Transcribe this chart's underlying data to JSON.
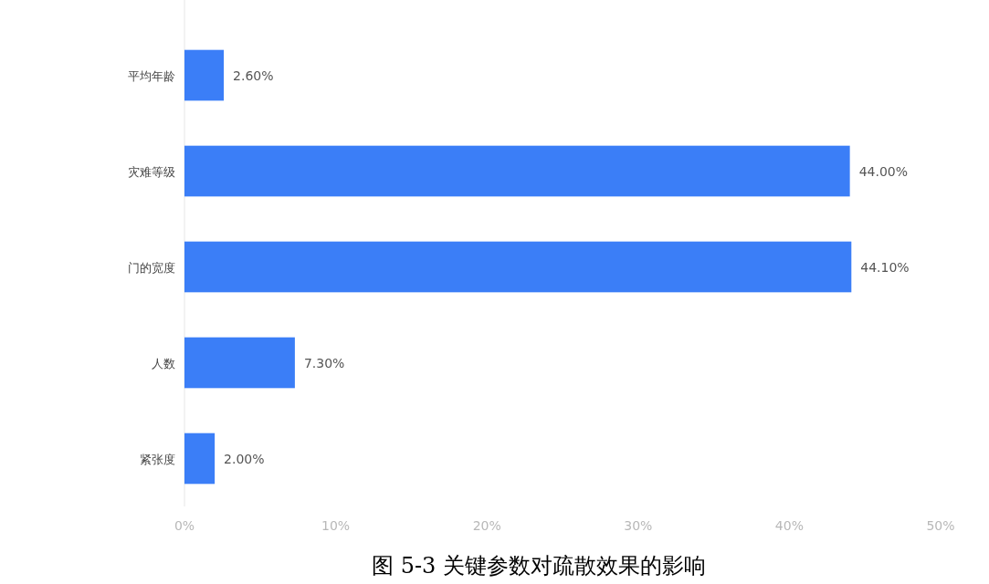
{
  "chart_data": {
    "type": "bar",
    "orientation": "horizontal",
    "title": "图 5-3  关键参数对疏散效果的影响",
    "categories": [
      "平均年龄",
      "灾难等级",
      "门的宽度",
      "人数",
      "紧张度"
    ],
    "values": [
      2.6,
      44.0,
      44.1,
      7.3,
      2.0
    ],
    "value_labels": [
      "2.60%",
      "44.00%",
      "44.10%",
      "7.30%",
      "2.00%"
    ],
    "color": "#3b7ef7",
    "xlim": [
      0,
      50
    ],
    "xticks": [
      {
        "value": 0,
        "label": "0%"
      },
      {
        "value": 10,
        "label": "10%"
      },
      {
        "value": 20,
        "label": "20%"
      },
      {
        "value": 30,
        "label": "30%"
      },
      {
        "value": 40,
        "label": "40%"
      },
      {
        "value": 50,
        "label": "50%"
      }
    ],
    "grid": false
  }
}
